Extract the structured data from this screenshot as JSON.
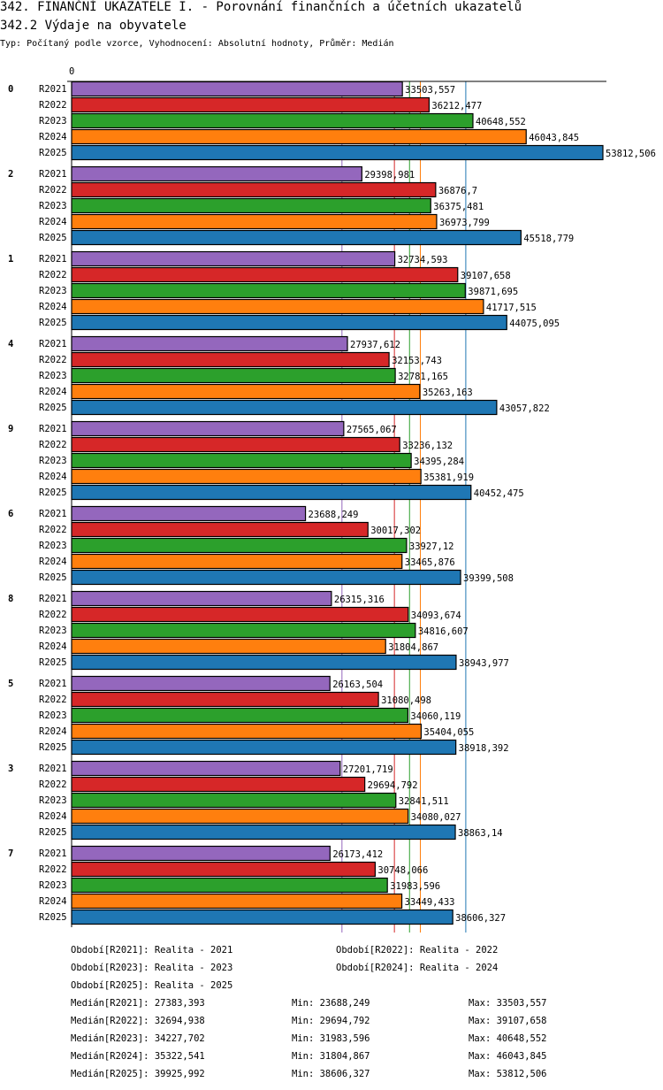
{
  "title": "342. FINANČNÍ UKAZATELE I. - Porovnání finančních a účetních ukazatelů",
  "subtitle": "342.2 Výdaje na obyvatele",
  "type_line": "Typ: Počítaný podle vzorce, Vyhodnocení: Absolutní hodnoty, Průměr: Medián",
  "chart_data": {
    "type": "bar",
    "orientation": "horizontal",
    "axis_zero_label": "0",
    "xlim": [
      0,
      53812.506
    ],
    "groups": [
      "0",
      "2",
      "1",
      "4",
      "9",
      "6",
      "8",
      "5",
      "3",
      "7"
    ],
    "series": [
      {
        "name": "R2021",
        "color": "#9467bd",
        "values": [
          "33503,557",
          "29398,981",
          "32734,593",
          "27937,612",
          "27565,067",
          "23688,249",
          "26315,316",
          "26163,504",
          "27201,719",
          "26173,412"
        ]
      },
      {
        "name": "R2022",
        "color": "#d62728",
        "values": [
          "36212,477",
          "36876,7",
          "39107,658",
          "32153,743",
          "33236,132",
          "30017,302",
          "34093,674",
          "31080,498",
          "29694,792",
          "30748,066"
        ]
      },
      {
        "name": "R2023",
        "color": "#2ca02c",
        "values": [
          "40648,552",
          "36375,481",
          "39871,695",
          "32781,165",
          "34395,284",
          "33927,12",
          "34816,607",
          "34060,119",
          "32841,511",
          "31983,596"
        ]
      },
      {
        "name": "R2024",
        "color": "#ff7f0e",
        "values": [
          "46043,845",
          "36973,799",
          "41717,515",
          "35263,163",
          "35381,919",
          "33465,876",
          "31804,867",
          "35404,055",
          "34080,027",
          "33449,433"
        ]
      },
      {
        "name": "R2025",
        "color": "#1f77b4",
        "values": [
          "53812,506",
          "45518,779",
          "44075,095",
          "43057,822",
          "40452,475",
          "39399,508",
          "38943,977",
          "38918,392",
          "38863,14",
          "38606,327"
        ]
      }
    ],
    "periods": [
      "Období[R2021]: Realita - 2021",
      "Období[R2022]: Realita - 2022",
      "Období[R2023]: Realita - 2023",
      "Období[R2024]: Realita - 2024",
      "Období[R2025]: Realita - 2025"
    ],
    "stats": [
      {
        "median": "Medián[R2021]: 27383,393",
        "min": "Min: 23688,249",
        "max": "Max: 33503,557",
        "median_value": 27383.393
      },
      {
        "median": "Medián[R2022]: 32694,938",
        "min": "Min: 29694,792",
        "max": "Max: 39107,658",
        "median_value": 32694.938
      },
      {
        "median": "Medián[R2023]: 34227,702",
        "min": "Min: 31983,596",
        "max": "Max: 40648,552",
        "median_value": 34227.702
      },
      {
        "median": "Medián[R2024]: 35322,541",
        "min": "Min: 31804,867",
        "max": "Max: 46043,845",
        "median_value": 35322.541
      },
      {
        "median": "Medián[R2025]: 39925,992",
        "min": "Min: 38606,327",
        "max": "Max: 53812,506",
        "median_value": 39925.992
      }
    ]
  }
}
